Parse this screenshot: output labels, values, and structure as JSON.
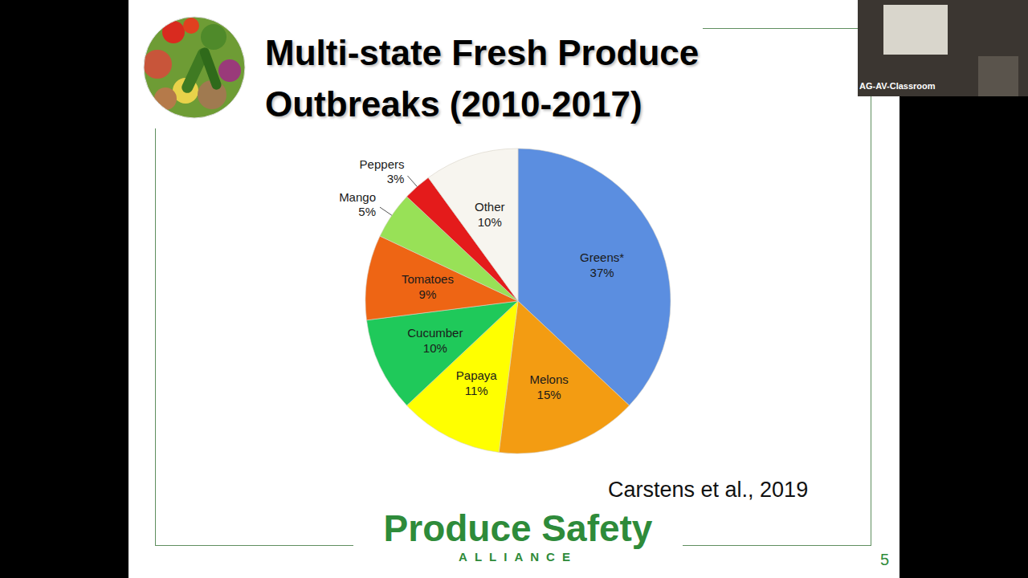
{
  "chart_data": {
    "type": "pie",
    "title": "Multi-state Fresh Produce Outbreaks (2010-2017)",
    "categories": [
      "Greens*",
      "Melons",
      "Papaya",
      "Cucumber",
      "Tomatoes",
      "Mango",
      "Peppers",
      "Other"
    ],
    "values": [
      37,
      15,
      11,
      10,
      9,
      5,
      3,
      10
    ],
    "value_labels": [
      "37%",
      "15%",
      "11%",
      "10%",
      "9%",
      "5%",
      "3%",
      "10%"
    ],
    "colors": [
      "#5b8ee0",
      "#f39c12",
      "#ffff00",
      "#1fc95a",
      "#ee6514",
      "#98e157",
      "#e41b1b",
      "#f7f5ef"
    ],
    "data_labels": true,
    "source": "Carstens et al., 2019"
  },
  "footer": {
    "logo": "Produce Safety",
    "logo_subtitle": "ALLIANCE",
    "page_number": 5
  },
  "video_label": "AG-AV-Classroom"
}
